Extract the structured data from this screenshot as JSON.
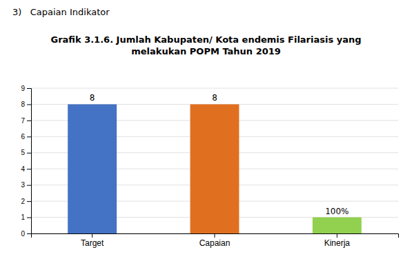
{
  "chart_data": {
    "type": "bar",
    "title": "Grafik 3.1.6. Jumlah Kabupaten/ Kota endemis Filariasis yang\nmelakukan POPM Tahun 2019",
    "annotations": [
      "3)   Capaian Indikator"
    ],
    "categories": [
      "Target",
      "Capaian",
      "Kinerja"
    ],
    "values": [
      8,
      8,
      1
    ],
    "value_labels": [
      "8",
      "8",
      "100%"
    ],
    "colors": [
      "#4472C4",
      "#E07020",
      "#92D050"
    ],
    "data_labels": true,
    "ylim": [
      0,
      9
    ],
    "yticks": [
      0,
      1,
      2,
      3,
      4,
      5,
      6,
      7,
      8,
      9
    ],
    "grid": true
  }
}
